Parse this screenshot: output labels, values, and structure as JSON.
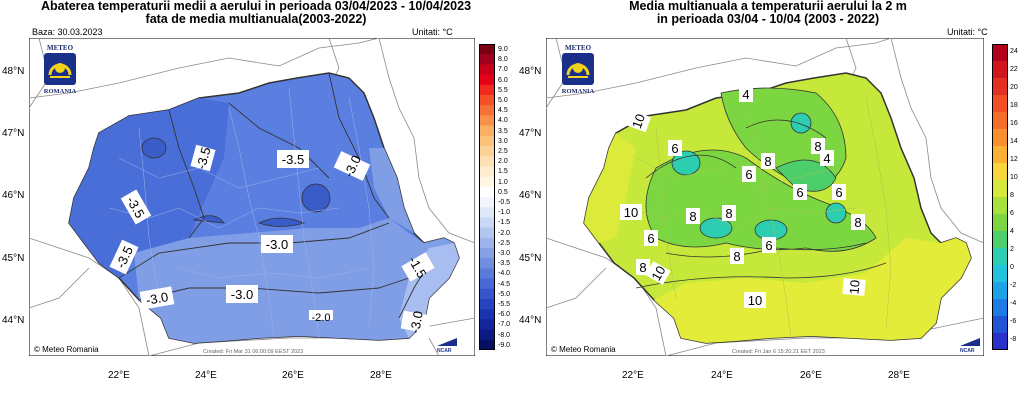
{
  "left": {
    "title_line1": "Abaterea temperaturii medii a aerului in perioada 03/04/2023 - 10/04/2023",
    "title_line2": "fata de media multianuala(2003-2022)",
    "base": "Baza: 30.03.2023",
    "units": "Unitati: °C",
    "created": "Created: Fri Mar 31 06:00:09 EEST 2023",
    "credit": "Meteo Romania",
    "colorbar_labels": [
      "9.0",
      "8.0",
      "7.0",
      "6.0",
      "5.5",
      "5.0",
      "4.5",
      "4.0",
      "3.5",
      "3.0",
      "2.5",
      "2.0",
      "1.5",
      "1.0",
      "0.5",
      "-0.5",
      "-1.0",
      "-1.5",
      "-2.0",
      "-2.5",
      "-3.0",
      "-3.5",
      "-4.0",
      "-4.5",
      "-5.0",
      "-5.5",
      "-6.0",
      "-7.0",
      "-8.0",
      "-9.0"
    ],
    "colorbar_colors": [
      "#7a0012",
      "#a00020",
      "#c8001c",
      "#e60018",
      "#f02a1c",
      "#f4502a",
      "#f67238",
      "#f8924a",
      "#fab062",
      "#fbc27c",
      "#fcd298",
      "#fde0b4",
      "#feecce",
      "#fff6e6",
      "#ffffff",
      "#f2f6fc",
      "#dfe8f8",
      "#c9d8f4",
      "#b2c6ef",
      "#9cb4ea",
      "#85a1e4",
      "#6f8edf",
      "#5a7bda",
      "#4868d4",
      "#3655cb",
      "#2644bf",
      "#1a34b0",
      "#12259a",
      "#0b1a82",
      "#060f62"
    ],
    "contour_labels": [
      "-3.5",
      "-3.5",
      "-3.0",
      "-3.5",
      "-3.5",
      "-3.0",
      "-3.0",
      "-3.0",
      "-1.5",
      "-3.0",
      "-2.0"
    ]
  },
  "right": {
    "title_line1": "Media multianuala a temperaturii aerului la 2 m",
    "title_line2": "in perioada 03/04 - 10/04 (2003 - 2022)",
    "units": "Unitati: °C",
    "created": "Created: Fri Jan 6 15:20:21 EET 2023",
    "credit": "Meteo Romania",
    "colorbar_labels": [
      "24",
      "22",
      "20",
      "18",
      "16",
      "14",
      "12",
      "10",
      "8",
      "6",
      "4",
      "2",
      "0",
      "-2",
      "-4",
      "-6",
      "-8"
    ],
    "colorbar_colors": [
      "#b2001a",
      "#d0161c",
      "#e43020",
      "#f04e24",
      "#f46e28",
      "#f89030",
      "#fbb234",
      "#f6d63a",
      "#d6e83c",
      "#a8e03e",
      "#7cd642",
      "#4ccf6a",
      "#2ccdb0",
      "#20c2dc",
      "#1ea2e6",
      "#1f7be4",
      "#2254d8",
      "#2a30c8"
    ],
    "contour_labels": [
      "10",
      "10",
      "10",
      "10",
      "10",
      "8",
      "8",
      "8",
      "8",
      "8",
      "8",
      "8",
      "6",
      "6",
      "6",
      "6",
      "6",
      "6",
      "4",
      "4"
    ]
  },
  "axes": {
    "lat_labels": [
      "48°N",
      "47°N",
      "46°N",
      "45°N",
      "44°N"
    ],
    "lon_labels": [
      "22°E",
      "24°E",
      "26°E",
      "28°E"
    ]
  },
  "logo": {
    "line1": "METEO",
    "line2": "ROMANIA"
  },
  "ncar": "NCAR"
}
